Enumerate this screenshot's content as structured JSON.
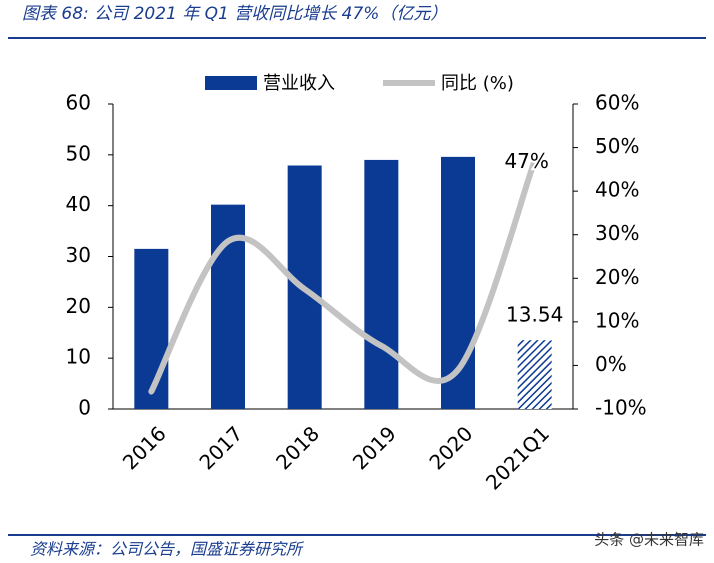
{
  "watermark": "头条 @未来智库",
  "chart_data": {
    "type": "bar-line",
    "title": "图表 68:  公司 2021 年 Q1 营收同比增长 47%（亿元）",
    "source": "资料来源：公司公告，国盛证券研究所",
    "categories": [
      "2016",
      "2017",
      "2018",
      "2019",
      "2020",
      "2021Q1"
    ],
    "series": [
      {
        "name": "营业收入",
        "type": "bar",
        "color": "#0a3a94",
        "values": [
          31.5,
          40.2,
          47.9,
          49.0,
          49.6,
          13.54
        ],
        "value_labels": [
          null,
          null,
          null,
          null,
          null,
          "13.54"
        ],
        "hatched_index": 5
      },
      {
        "name": "同比 (%)",
        "type": "line",
        "axis": "y2",
        "color": "#c3c3c3",
        "values": [
          -6,
          28.5,
          17.5,
          4.5,
          -1,
          47
        ],
        "value_labels": [
          null,
          null,
          null,
          null,
          null,
          "47%"
        ]
      }
    ],
    "ylim": [
      0,
      60
    ],
    "yticks": [
      0,
      10,
      20,
      30,
      40,
      50,
      60
    ],
    "y2lim": [
      -10,
      60
    ],
    "y2ticks": [
      {
        "value": -10,
        "label": "-10%"
      },
      {
        "value": 0,
        "label": "0%"
      },
      {
        "value": 10,
        "label": "10%"
      },
      {
        "value": 20,
        "label": "20%"
      },
      {
        "value": 30,
        "label": "30%"
      },
      {
        "value": 40,
        "label": "40%"
      },
      {
        "value": 50,
        "label": "50%"
      },
      {
        "value": 60,
        "label": "60%"
      }
    ],
    "legend": "top"
  }
}
